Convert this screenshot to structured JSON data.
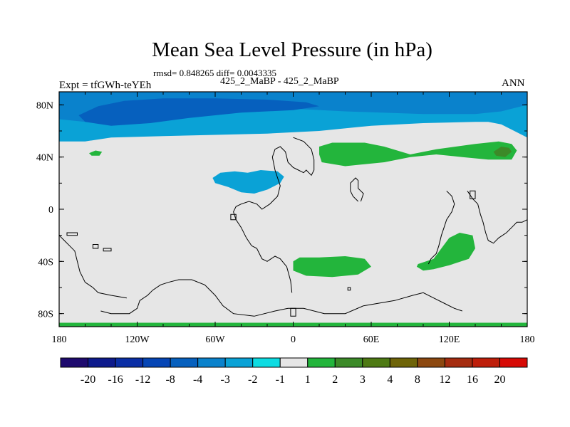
{
  "chart_data": {
    "type": "heatmap",
    "title": "Mean Sea Level Pressure (in hPa)",
    "stats_text": "rmsd= 0.848265 diff= 0.0043335",
    "subtitle": "425_2_MaBP - 425_2_MaBP",
    "left_label": "Expt = tfGWh-teYEh",
    "right_label": "ANN",
    "xlabel": "",
    "ylabel": "",
    "xlim": [
      -180,
      180
    ],
    "ylim": [
      -90,
      90
    ],
    "x_ticks": [
      {
        "value": -180,
        "label": "180"
      },
      {
        "value": -120,
        "label": "120W"
      },
      {
        "value": -60,
        "label": "60W"
      },
      {
        "value": 0,
        "label": "0"
      },
      {
        "value": 60,
        "label": "60E"
      },
      {
        "value": 120,
        "label": "120E"
      },
      {
        "value": 180,
        "label": "180"
      }
    ],
    "y_ticks": [
      {
        "value": 80,
        "label": "80N"
      },
      {
        "value": 40,
        "label": "40N"
      },
      {
        "value": 0,
        "label": "0"
      },
      {
        "value": -40,
        "label": "40S"
      },
      {
        "value": -80,
        "label": "80S"
      }
    ],
    "colorbar": {
      "levels": [
        "-20",
        "-16",
        "-12",
        "-8",
        "-4",
        "-3",
        "-2",
        "-1",
        "1",
        "2",
        "3",
        "4",
        "8",
        "12",
        "16",
        "20"
      ],
      "colors": [
        "#1e0a6e",
        "#0d1a8c",
        "#0a2ea5",
        "#0545b5",
        "#0660be",
        "#0a82cc",
        "#0aa2d6",
        "#0ddce2",
        "#e6e6e6",
        "#23b53c",
        "#3c8a28",
        "#4e7a14",
        "#6e6408",
        "#8c4810",
        "#a52c10",
        "#be1e0a",
        "#d70a05"
      ]
    },
    "regions": [
      {
        "name": "arctic-band",
        "value": "-2 to -1",
        "points": [
          [
            -180,
            90
          ],
          [
            180,
            90
          ],
          [
            180,
            55
          ],
          [
            170,
            60
          ],
          [
            160,
            65
          ],
          [
            150,
            67
          ],
          [
            140,
            67
          ],
          [
            100,
            66
          ],
          [
            60,
            64
          ],
          [
            20,
            60
          ],
          [
            -20,
            58
          ],
          [
            -60,
            57
          ],
          [
            -100,
            56
          ],
          [
            -140,
            55
          ],
          [
            -160,
            52
          ],
          [
            -180,
            52
          ]
        ]
      },
      {
        "name": "arctic-core",
        "value": "-3 to -2",
        "points": [
          [
            -180,
            90
          ],
          [
            180,
            90
          ],
          [
            180,
            80
          ],
          [
            160,
            75
          ],
          [
            140,
            73
          ],
          [
            100,
            73
          ],
          [
            40,
            75
          ],
          [
            0,
            77
          ],
          [
            -40,
            75
          ],
          [
            -80,
            72
          ],
          [
            -110,
            68
          ],
          [
            -140,
            66
          ],
          [
            -160,
            67
          ],
          [
            -180,
            69
          ]
        ]
      },
      {
        "name": "arctic-deep",
        "value": "-4 to -3",
        "points": [
          [
            -165,
            72
          ],
          [
            -150,
            79
          ],
          [
            -130,
            83
          ],
          [
            -100,
            85
          ],
          [
            -60,
            85
          ],
          [
            -20,
            84
          ],
          [
            10,
            82
          ],
          [
            20,
            79
          ],
          [
            0,
            76
          ],
          [
            -40,
            74
          ],
          [
            -80,
            70
          ],
          [
            -110,
            66
          ],
          [
            -140,
            64
          ],
          [
            -160,
            67
          ]
        ]
      },
      {
        "name": "pacific-low",
        "value": "-2 to -1",
        "points": [
          [
            -62,
            24
          ],
          [
            -56,
            28
          ],
          [
            -45,
            29
          ],
          [
            -35,
            28
          ],
          [
            -25,
            30
          ],
          [
            -12,
            29
          ],
          [
            -7,
            25
          ],
          [
            -10,
            20
          ],
          [
            -20,
            15
          ],
          [
            -30,
            12
          ],
          [
            -40,
            13
          ],
          [
            -50,
            17
          ],
          [
            -60,
            20
          ]
        ]
      },
      {
        "name": "north-high",
        "value": "1 to 2",
        "points": [
          [
            20,
            48
          ],
          [
            30,
            51
          ],
          [
            55,
            51
          ],
          [
            70,
            48
          ],
          [
            90,
            42
          ],
          [
            110,
            46
          ],
          [
            140,
            50
          ],
          [
            158,
            52
          ],
          [
            168,
            50
          ],
          [
            172,
            45
          ],
          [
            168,
            38
          ],
          [
            150,
            38
          ],
          [
            130,
            40
          ],
          [
            110,
            42
          ],
          [
            90,
            40
          ],
          [
            70,
            36
          ],
          [
            40,
            33
          ],
          [
            22,
            36
          ],
          [
            20,
            42
          ]
        ]
      },
      {
        "name": "north-high-core",
        "value": "2 to 3",
        "points": [
          [
            154,
            44
          ],
          [
            160,
            48
          ],
          [
            166,
            47
          ],
          [
            168,
            44
          ],
          [
            163,
            40
          ],
          [
            156,
            41
          ]
        ]
      },
      {
        "name": "small-high",
        "value": "1 to 2",
        "points": [
          [
            -157,
            43
          ],
          [
            -152,
            45
          ],
          [
            -147,
            44
          ],
          [
            -149,
            41
          ],
          [
            -155,
            41
          ]
        ]
      },
      {
        "name": "south-atlantic-high",
        "value": "1 to 2",
        "points": [
          [
            0,
            -40
          ],
          [
            5,
            -37
          ],
          [
            20,
            -37
          ],
          [
            40,
            -36
          ],
          [
            55,
            -38
          ],
          [
            60,
            -44
          ],
          [
            50,
            -50
          ],
          [
            30,
            -52
          ],
          [
            10,
            -51
          ],
          [
            0,
            -47
          ]
        ]
      },
      {
        "name": "south-pacific-high",
        "value": "1 to 2",
        "points": [
          [
            96,
            -42
          ],
          [
            108,
            -38
          ],
          [
            114,
            -30
          ],
          [
            120,
            -22
          ],
          [
            128,
            -18
          ],
          [
            138,
            -20
          ],
          [
            140,
            -30
          ],
          [
            135,
            -38
          ],
          [
            120,
            -43
          ],
          [
            108,
            -46
          ],
          [
            100,
            -47
          ],
          [
            95,
            -44
          ]
        ]
      },
      {
        "name": "antarctic-strip",
        "value": "1 to 2",
        "points": [
          [
            -180,
            -87
          ],
          [
            180,
            -87
          ],
          [
            180,
            -90
          ],
          [
            -180,
            -90
          ]
        ]
      }
    ],
    "coastlines": [
      {
        "name": "eurasia-africa-coast",
        "points": [
          [
            -1,
            -64
          ],
          [
            -2,
            -55
          ],
          [
            -5,
            -44
          ],
          [
            -10,
            -38
          ],
          [
            -14,
            -36
          ],
          [
            -20,
            -40
          ],
          [
            -24,
            -38
          ],
          [
            -28,
            -30
          ],
          [
            -32,
            -28
          ],
          [
            -36,
            -22
          ],
          [
            -40,
            -14
          ],
          [
            -44,
            -8
          ],
          [
            -46,
            -2
          ],
          [
            -44,
            2
          ],
          [
            -40,
            4
          ],
          [
            -34,
            6
          ],
          [
            -28,
            4
          ],
          [
            -24,
            0
          ],
          [
            -18,
            4
          ],
          [
            -12,
            10
          ],
          [
            -10,
            18
          ],
          [
            -12,
            24
          ],
          [
            -14,
            30
          ],
          [
            -16,
            40
          ],
          [
            -14,
            46
          ],
          [
            -10,
            48
          ],
          [
            -6,
            44
          ],
          [
            -4,
            36
          ],
          [
            0,
            32
          ],
          [
            4,
            30
          ],
          [
            8,
            28
          ],
          [
            10,
            30
          ],
          [
            12,
            28
          ],
          [
            14,
            26
          ],
          [
            16,
            30
          ],
          [
            16,
            38
          ],
          [
            14,
            46
          ],
          [
            8,
            52
          ],
          [
            0,
            55
          ]
        ]
      },
      {
        "name": "east-coast",
        "points": [
          [
            118,
            14
          ],
          [
            122,
            10
          ],
          [
            124,
            4
          ],
          [
            122,
            -2
          ],
          [
            118,
            -8
          ],
          [
            116,
            -14
          ],
          [
            114,
            -20
          ],
          [
            112,
            -28
          ],
          [
            110,
            -34
          ],
          [
            106,
            -38
          ],
          [
            104,
            -42
          ]
        ]
      },
      {
        "name": "southern-coast",
        "points": [
          [
            -148,
            -78
          ],
          [
            -140,
            -80
          ],
          [
            -126,
            -80
          ],
          [
            -120,
            -76
          ],
          [
            -118,
            -70
          ],
          [
            -112,
            -66
          ],
          [
            -108,
            -62
          ],
          [
            -102,
            -58
          ],
          [
            -96,
            -56
          ],
          [
            -88,
            -54
          ],
          [
            -78,
            -54
          ],
          [
            -68,
            -58
          ],
          [
            -60,
            -66
          ],
          [
            -54,
            -74
          ],
          [
            -46,
            -80
          ],
          [
            -30,
            -82
          ],
          [
            -14,
            -78
          ],
          [
            -4,
            -76
          ],
          [
            8,
            -76
          ],
          [
            24,
            -80
          ],
          [
            40,
            -80
          ],
          [
            54,
            -74
          ],
          [
            66,
            -72
          ],
          [
            78,
            -70
          ],
          [
            92,
            -66
          ],
          [
            100,
            -64
          ],
          [
            108,
            -68
          ],
          [
            116,
            -72
          ],
          [
            124,
            -76
          ],
          [
            130,
            -78
          ]
        ]
      },
      {
        "name": "far-east-coast",
        "points": [
          [
            134,
            14
          ],
          [
            138,
            8
          ],
          [
            142,
            4
          ],
          [
            144,
            -4
          ],
          [
            146,
            -10
          ],
          [
            148,
            -18
          ],
          [
            150,
            -24
          ],
          [
            154,
            -26
          ],
          [
            158,
            -22
          ],
          [
            164,
            -18
          ],
          [
            168,
            -14
          ],
          [
            172,
            -10
          ],
          [
            176,
            -10
          ],
          [
            180,
            -8
          ]
        ]
      },
      {
        "name": "west-coast",
        "points": [
          [
            -180,
            -20
          ],
          [
            -176,
            -24
          ],
          [
            -172,
            -28
          ],
          [
            -168,
            -32
          ],
          [
            -166,
            -40
          ],
          [
            -164,
            -48
          ],
          [
            -160,
            -56
          ],
          [
            -154,
            -60
          ],
          [
            -150,
            -64
          ],
          [
            -140,
            -66
          ],
          [
            -128,
            -68
          ]
        ]
      },
      {
        "name": "inner-coast",
        "points": [
          [
            50,
            6
          ],
          [
            46,
            10
          ],
          [
            44,
            14
          ],
          [
            44,
            20
          ],
          [
            48,
            24
          ],
          [
            50,
            22
          ],
          [
            50,
            16
          ],
          [
            54,
            12
          ],
          [
            52,
            6
          ]
        ]
      },
      {
        "name": "island-1",
        "points": [
          [
            -174,
            -18
          ],
          [
            -166,
            -18
          ],
          [
            -166,
            -20
          ],
          [
            -174,
            -20
          ]
        ]
      },
      {
        "name": "island-2",
        "points": [
          [
            -154,
            -27
          ],
          [
            -150,
            -27
          ],
          [
            -150,
            -30
          ],
          [
            -154,
            -30
          ]
        ]
      },
      {
        "name": "island-3",
        "points": [
          [
            -146,
            -30
          ],
          [
            -140,
            -30
          ],
          [
            -140,
            -32
          ],
          [
            -146,
            -32
          ]
        ]
      },
      {
        "name": "island-4",
        "points": [
          [
            136,
            14
          ],
          [
            140,
            14
          ],
          [
            140,
            8
          ],
          [
            136,
            8
          ]
        ]
      },
      {
        "name": "island-5",
        "points": [
          [
            42,
            -60
          ],
          [
            44,
            -60
          ],
          [
            44,
            -62
          ],
          [
            42,
            -62
          ]
        ]
      },
      {
        "name": "island-6",
        "points": [
          [
            -48,
            -4
          ],
          [
            -44,
            -4
          ],
          [
            -44,
            -8
          ],
          [
            -48,
            -8
          ]
        ]
      },
      {
        "name": "antarctic-fragment",
        "points": [
          [
            -2,
            -76
          ],
          [
            -2,
            -82
          ],
          [
            2,
            -82
          ],
          [
            2,
            -76
          ]
        ]
      }
    ]
  }
}
